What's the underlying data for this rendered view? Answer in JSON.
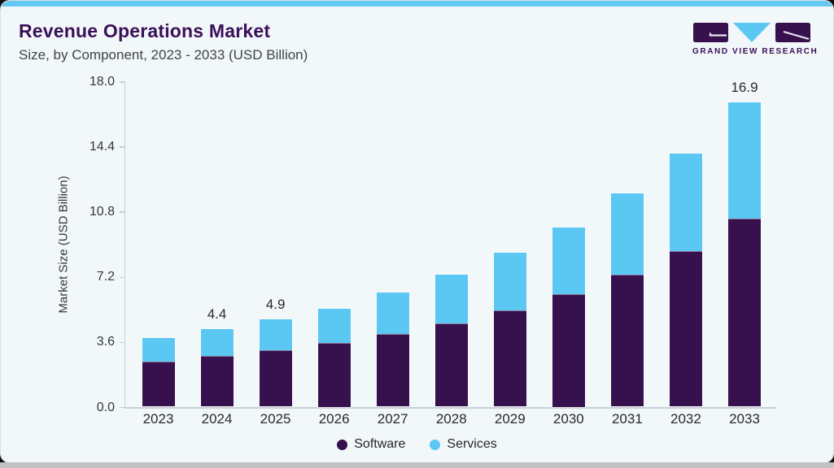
{
  "header": {
    "title": "Revenue Operations Market",
    "subtitle": "Size, by Component, 2023 - 2033 (USD Billion)"
  },
  "logo": {
    "company": "GRAND VIEW RESEARCH"
  },
  "theme": {
    "accent_bar": "#64C9F2",
    "card_background": "#F2F7FA",
    "title_color": "#3A1056",
    "axis_line_color": "#C7D0D7"
  },
  "chart_data": {
    "type": "bar",
    "stacked": true,
    "title": "Revenue Operations Market Size, by Component, 2023 - 2033 (USD Billion)",
    "categories": [
      "2023",
      "2024",
      "2025",
      "2026",
      "2027",
      "2028",
      "2029",
      "2030",
      "2031",
      "2032",
      "2033"
    ],
    "series": [
      {
        "name": "Software",
        "color": "#36114E",
        "values": [
          2.6,
          2.9,
          3.2,
          3.6,
          4.1,
          4.7,
          5.4,
          6.3,
          7.4,
          8.7,
          10.5
        ]
      },
      {
        "name": "Services",
        "color": "#5BC7F3",
        "values": [
          1.3,
          1.5,
          1.7,
          1.9,
          2.3,
          2.7,
          3.2,
          3.7,
          4.5,
          5.4,
          6.4
        ]
      }
    ],
    "totals": [
      3.9,
      4.4,
      4.9,
      5.5,
      6.4,
      7.4,
      8.6,
      10.0,
      11.9,
      14.1,
      16.9
    ],
    "totals_labels": [
      "",
      "4.4",
      "4.9",
      "",
      "",
      "",
      "",
      "",
      "",
      "",
      "16.9"
    ],
    "ylabel": "Market Size (USD Billion)",
    "yticks": [
      "0.0",
      "3.6",
      "7.2",
      "10.8",
      "14.4",
      "18.0"
    ],
    "ylim": [
      0,
      18
    ],
    "grid": false,
    "legend_position": "bottom"
  }
}
